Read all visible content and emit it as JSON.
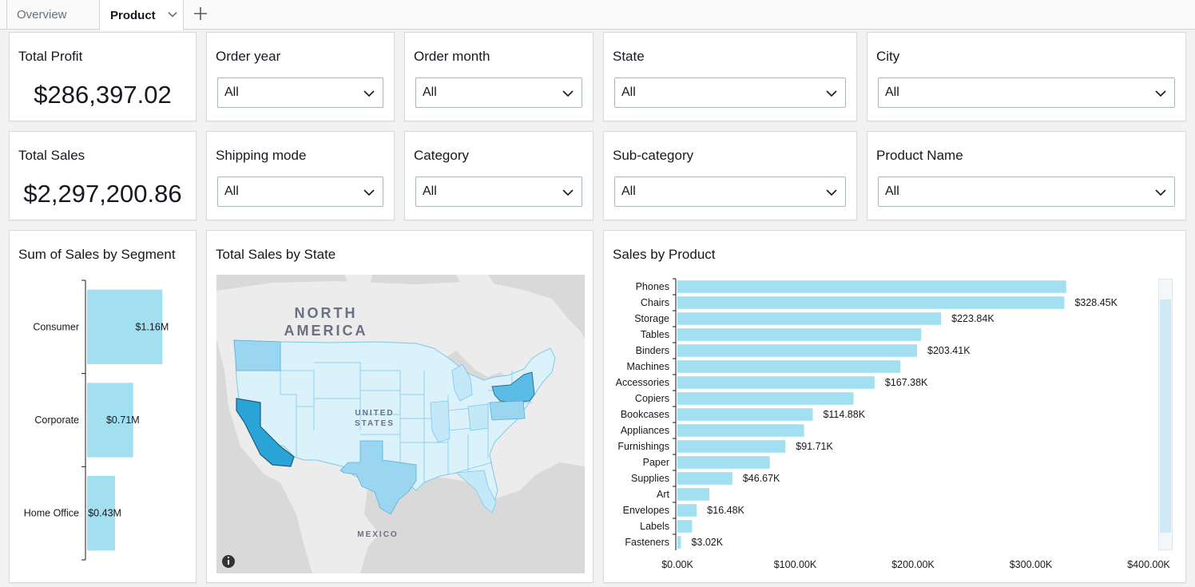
{
  "tabs": [
    {
      "label": "Overview"
    },
    {
      "label": "Product"
    }
  ],
  "kpis": {
    "total_profit": {
      "title": "Total Profit",
      "value": "$286,397.02"
    },
    "total_sales": {
      "title": "Total Sales",
      "value": "$2,297,200.86"
    }
  },
  "filters": {
    "order_year": {
      "label": "Order year",
      "value": "All"
    },
    "order_month": {
      "label": "Order month",
      "value": "All"
    },
    "state": {
      "label": "State",
      "value": "All"
    },
    "city": {
      "label": "City",
      "value": "All"
    },
    "shipping_mode": {
      "label": "Shipping mode",
      "value": "All"
    },
    "category": {
      "label": "Category",
      "value": "All"
    },
    "sub_category": {
      "label": "Sub-category",
      "value": "All"
    },
    "product_name": {
      "label": "Product Name",
      "value": "All"
    }
  },
  "map": {
    "title": "Total Sales by State",
    "labels": {
      "continent_line1": "NORTH",
      "continent_line2": "AMERICA",
      "country_line1": "UNITED",
      "country_line2": "STATES",
      "mexico": "MEXICO"
    },
    "info_icon": "info-icon"
  },
  "colors": {
    "bar": "#a1dff1",
    "map_low": "#d8f1fb",
    "map_mid": "#9bd6f0",
    "map_high": "#2aa3d6",
    "map_ny": "#5bbce6"
  },
  "chart_data": [
    {
      "type": "bar",
      "orientation": "horizontal",
      "title": "Sum of Sales by Segment",
      "categories": [
        "Consumer",
        "Corporate",
        "Home Office"
      ],
      "values": [
        1.16,
        0.71,
        0.43
      ],
      "value_labels": [
        "$1.16M",
        "$0.71M",
        "$0.43M"
      ],
      "unit": "M",
      "xlim": [
        0,
        1.6
      ]
    },
    {
      "type": "bar",
      "orientation": "horizontal",
      "title": "Sales by Product",
      "categories": [
        "Phones",
        "Chairs",
        "Storage",
        "Tables",
        "Binders",
        "Machines",
        "Accessories",
        "Copiers",
        "Bookcases",
        "Appliances",
        "Furnishings",
        "Paper",
        "Supplies",
        "Art",
        "Envelopes",
        "Labels",
        "Fasteners"
      ],
      "values": [
        330.01,
        328.45,
        223.84,
        206.97,
        203.41,
        189.24,
        167.38,
        149.53,
        114.88,
        107.53,
        91.71,
        78.48,
        46.67,
        27.12,
        16.48,
        12.49,
        3.02
      ],
      "value_labels": [
        "",
        "$328.45K",
        "$223.84K",
        "",
        "$203.41K",
        "",
        "$167.38K",
        "",
        "$114.88K",
        "",
        "$91.71K",
        "",
        "$46.67K",
        "",
        "$16.48K",
        "",
        "$3.02K"
      ],
      "x_ticks": [
        "$0.00K",
        "$100.00K",
        "$200.00K",
        "$300.00K",
        "$400.00K"
      ],
      "xlim": [
        0,
        400
      ]
    }
  ]
}
